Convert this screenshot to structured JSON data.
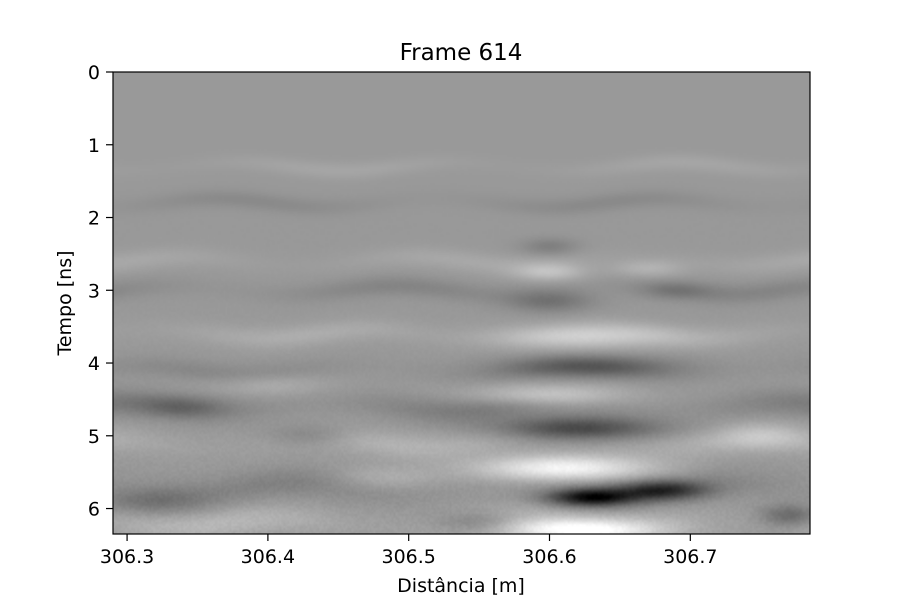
{
  "chart_data": {
    "type": "heatmap",
    "title": "Frame 614",
    "xlabel": "Distância [m]",
    "ylabel": "Tempo [ns]",
    "xlim": [
      306.29,
      306.785
    ],
    "ylim": [
      6.35,
      0
    ],
    "y_inverted": true,
    "x_ticks": [
      306.3,
      306.4,
      306.5,
      306.6,
      306.7
    ],
    "x_tick_labels": [
      "306.3",
      "306.4",
      "306.5",
      "306.6",
      "306.7"
    ],
    "y_ticks": [
      0,
      1,
      2,
      3,
      4,
      5,
      6
    ],
    "y_tick_labels": [
      "0",
      "1",
      "2",
      "3",
      "4",
      "5",
      "6"
    ],
    "colormap": "gray",
    "grid": false,
    "background_value": 0.6,
    "features": [
      {
        "kind": "band",
        "t": 1.3,
        "amp": 0.05,
        "width": 0.12
      },
      {
        "kind": "band",
        "t": 1.8,
        "amp": -0.06,
        "width": 0.12
      },
      {
        "kind": "band",
        "t": 2.6,
        "amp": 0.06,
        "width": 0.14
      },
      {
        "kind": "band",
        "t": 3.0,
        "amp": -0.08,
        "width": 0.14
      },
      {
        "kind": "band",
        "t": 3.6,
        "amp": 0.08,
        "width": 0.15
      },
      {
        "kind": "band",
        "t": 4.1,
        "amp": -0.07,
        "width": 0.15
      },
      {
        "kind": "band",
        "t": 4.6,
        "amp": -0.12,
        "width": 0.18
      },
      {
        "kind": "band",
        "t": 5.1,
        "amp": 0.1,
        "width": 0.18
      },
      {
        "kind": "band",
        "t": 5.7,
        "amp": -0.1,
        "width": 0.2
      },
      {
        "kind": "band",
        "t": 6.2,
        "amp": 0.12,
        "width": 0.2
      },
      {
        "kind": "blob",
        "x": 306.6,
        "t": 2.4,
        "amp": -0.1,
        "sx": 0.02,
        "st": 0.12
      },
      {
        "kind": "blob",
        "x": 306.6,
        "t": 2.75,
        "amp": 0.15,
        "sx": 0.025,
        "st": 0.12
      },
      {
        "kind": "blob",
        "x": 306.6,
        "t": 3.15,
        "amp": -0.15,
        "sx": 0.03,
        "st": 0.15
      },
      {
        "kind": "blob",
        "x": 306.67,
        "t": 2.7,
        "amp": 0.1,
        "sx": 0.025,
        "st": 0.12
      },
      {
        "kind": "blob",
        "x": 306.69,
        "t": 3.0,
        "amp": -0.1,
        "sx": 0.025,
        "st": 0.12
      },
      {
        "kind": "blob",
        "x": 306.62,
        "t": 3.65,
        "amp": 0.18,
        "sx": 0.06,
        "st": 0.16
      },
      {
        "kind": "blob",
        "x": 306.63,
        "t": 4.05,
        "amp": -0.2,
        "sx": 0.06,
        "st": 0.15
      },
      {
        "kind": "blob",
        "x": 306.6,
        "t": 4.45,
        "amp": 0.22,
        "sx": 0.05,
        "st": 0.15
      },
      {
        "kind": "blob",
        "x": 306.62,
        "t": 4.9,
        "amp": -0.32,
        "sx": 0.055,
        "st": 0.16
      },
      {
        "kind": "blob",
        "x": 306.61,
        "t": 5.45,
        "amp": 0.38,
        "sx": 0.06,
        "st": 0.18
      },
      {
        "kind": "blob",
        "x": 306.63,
        "t": 5.85,
        "amp": -0.55,
        "sx": 0.03,
        "st": 0.12
      },
      {
        "kind": "blob",
        "x": 306.68,
        "t": 5.75,
        "amp": -0.38,
        "sx": 0.03,
        "st": 0.13
      },
      {
        "kind": "blob",
        "x": 306.62,
        "t": 6.3,
        "amp": 0.35,
        "sx": 0.06,
        "st": 0.15
      },
      {
        "kind": "blob",
        "x": 306.34,
        "t": 4.6,
        "amp": -0.12,
        "sx": 0.03,
        "st": 0.15
      },
      {
        "kind": "blob",
        "x": 306.4,
        "t": 4.3,
        "amp": 0.08,
        "sx": 0.04,
        "st": 0.15
      },
      {
        "kind": "blob",
        "x": 306.43,
        "t": 5.0,
        "amp": -0.1,
        "sx": 0.03,
        "st": 0.15
      },
      {
        "kind": "blob",
        "x": 306.32,
        "t": 5.9,
        "amp": -0.15,
        "sx": 0.04,
        "st": 0.18
      },
      {
        "kind": "blob",
        "x": 306.48,
        "t": 5.6,
        "amp": 0.1,
        "sx": 0.04,
        "st": 0.18
      },
      {
        "kind": "blob",
        "x": 306.55,
        "t": 6.2,
        "amp": -0.15,
        "sx": 0.03,
        "st": 0.15
      },
      {
        "kind": "blob",
        "x": 306.77,
        "t": 6.1,
        "amp": -0.2,
        "sx": 0.02,
        "st": 0.15
      },
      {
        "kind": "blob",
        "x": 306.75,
        "t": 5.0,
        "amp": 0.1,
        "sx": 0.03,
        "st": 0.18
      }
    ]
  }
}
